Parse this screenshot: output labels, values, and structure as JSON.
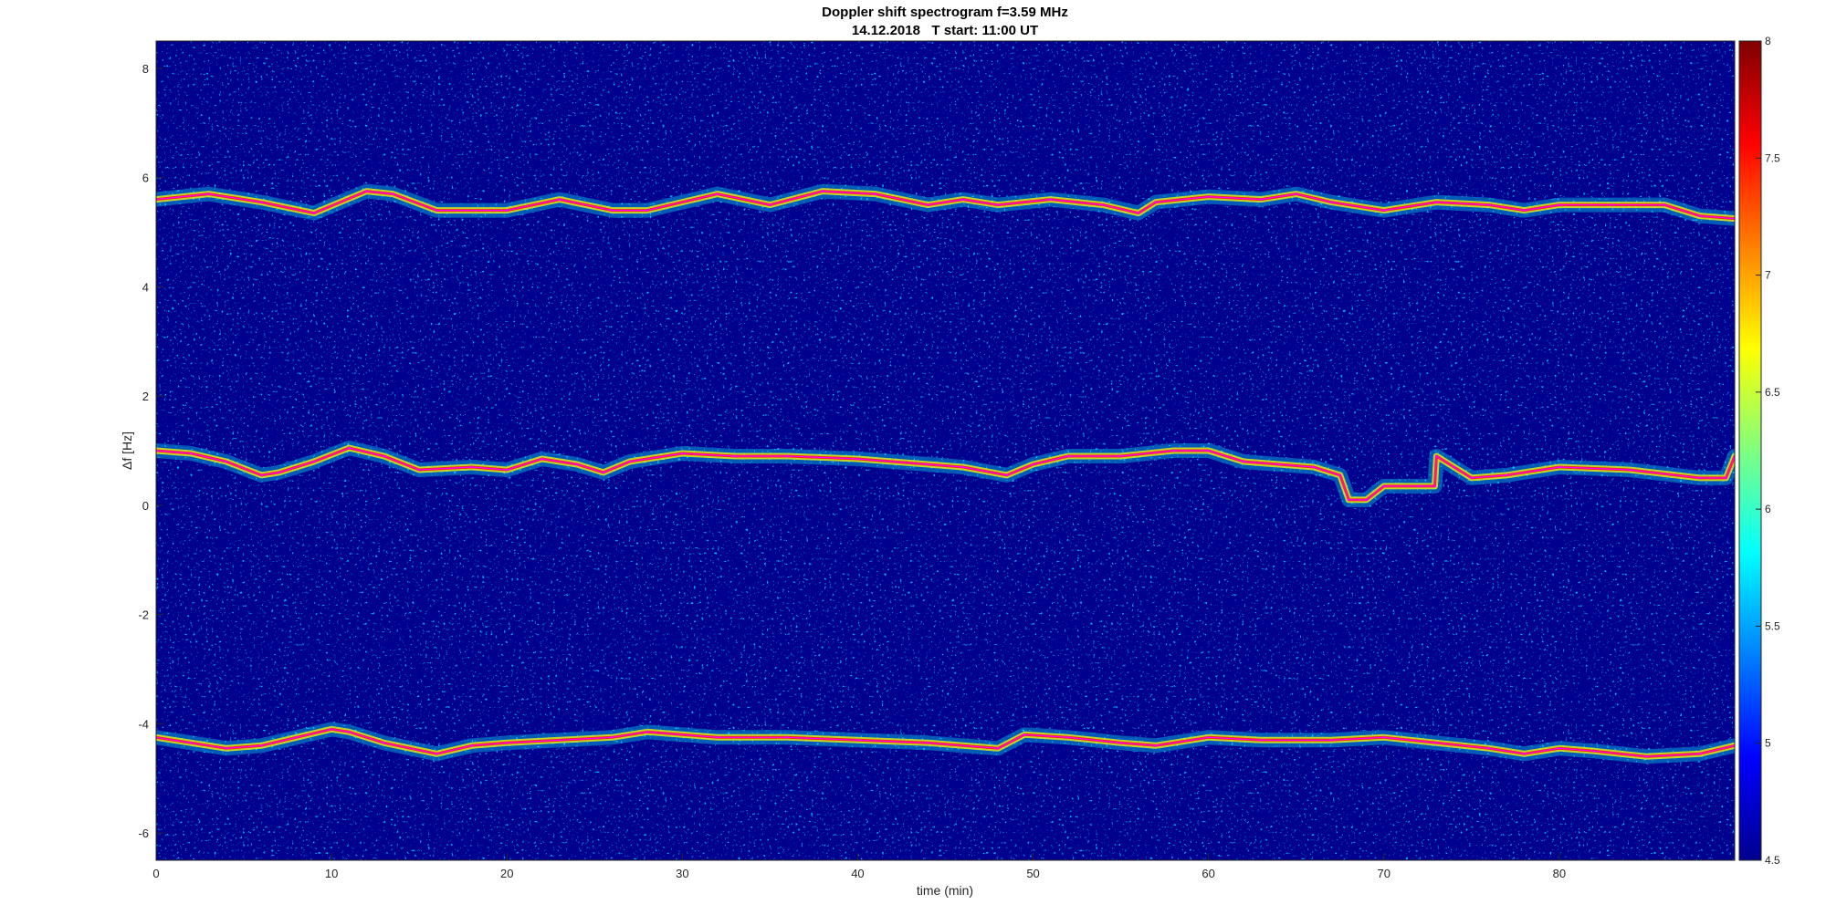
{
  "chart_data": {
    "type": "heatmap",
    "title": "Doppler shift spectrogram f=3.59 MHz",
    "subtitle": "14.12.2018   T start: 11:00 UT",
    "xlabel": "time (min)",
    "ylabel": "Δf [Hz]",
    "xlim": [
      0,
      90
    ],
    "ylim": [
      -6.5,
      8.5
    ],
    "xticks": [
      0,
      10,
      20,
      30,
      40,
      50,
      60,
      70,
      80
    ],
    "yticks": [
      8,
      6,
      4,
      2,
      0,
      -2,
      -4,
      -6
    ],
    "colormap": "jet",
    "colorbar": {
      "clim": [
        4.5,
        8
      ],
      "ticks": [
        8,
        7.5,
        7,
        6.5,
        6,
        5.5,
        5,
        4.5
      ]
    },
    "background_color": "#00008f",
    "trace_color": "#ff00ff",
    "series": [
      {
        "x": [
          0,
          3,
          6,
          9,
          12,
          13.5,
          16,
          20,
          23,
          26,
          28,
          32,
          35,
          38,
          41,
          44,
          46,
          48,
          51,
          54,
          56,
          57,
          60,
          63,
          65,
          67,
          70,
          73,
          76,
          78,
          80,
          83,
          86,
          88,
          90
        ],
        "values": [
          5.6,
          5.7,
          5.55,
          5.35,
          5.75,
          5.7,
          5.4,
          5.4,
          5.6,
          5.4,
          5.4,
          5.7,
          5.5,
          5.75,
          5.7,
          5.5,
          5.6,
          5.5,
          5.6,
          5.5,
          5.35,
          5.55,
          5.65,
          5.6,
          5.7,
          5.55,
          5.4,
          5.55,
          5.5,
          5.4,
          5.5,
          5.5,
          5.5,
          5.3,
          5.25
        ]
      },
      {
        "x": [
          0,
          2,
          4,
          6,
          7,
          9,
          11,
          13,
          15,
          18,
          20,
          22,
          24,
          25.5,
          27,
          30,
          33,
          36,
          40,
          44,
          46,
          48.5,
          50,
          52,
          55,
          58,
          60,
          62,
          64,
          66,
          67.5,
          68,
          69,
          70,
          72,
          72.9,
          73,
          74,
          75,
          77,
          80,
          84,
          88,
          89.5,
          90
        ],
        "values": [
          1.0,
          0.95,
          0.8,
          0.55,
          0.6,
          0.8,
          1.05,
          0.9,
          0.65,
          0.7,
          0.65,
          0.85,
          0.75,
          0.6,
          0.8,
          0.95,
          0.9,
          0.9,
          0.85,
          0.75,
          0.7,
          0.55,
          0.75,
          0.9,
          0.9,
          1.0,
          1.0,
          0.8,
          0.75,
          0.7,
          0.55,
          0.1,
          0.1,
          0.35,
          0.35,
          0.35,
          0.9,
          0.7,
          0.5,
          0.55,
          0.7,
          0.65,
          0.5,
          0.5,
          0.9
        ]
      },
      {
        "x": [
          0,
          2,
          4,
          6,
          8,
          10,
          11,
          13,
          16,
          18,
          20,
          23,
          26,
          28,
          32,
          36,
          40,
          44,
          48,
          49.5,
          52,
          55,
          57,
          60,
          63,
          67,
          70,
          73,
          76,
          78,
          80,
          82,
          85,
          88,
          90
        ],
        "values": [
          -4.25,
          -4.35,
          -4.45,
          -4.4,
          -4.25,
          -4.1,
          -4.15,
          -4.35,
          -4.55,
          -4.4,
          -4.35,
          -4.3,
          -4.25,
          -4.15,
          -4.25,
          -4.25,
          -4.3,
          -4.35,
          -4.45,
          -4.2,
          -4.25,
          -4.35,
          -4.4,
          -4.25,
          -4.3,
          -4.3,
          -4.25,
          -4.35,
          -4.45,
          -4.55,
          -4.45,
          -4.5,
          -4.6,
          -4.55,
          -4.4
        ]
      }
    ]
  }
}
